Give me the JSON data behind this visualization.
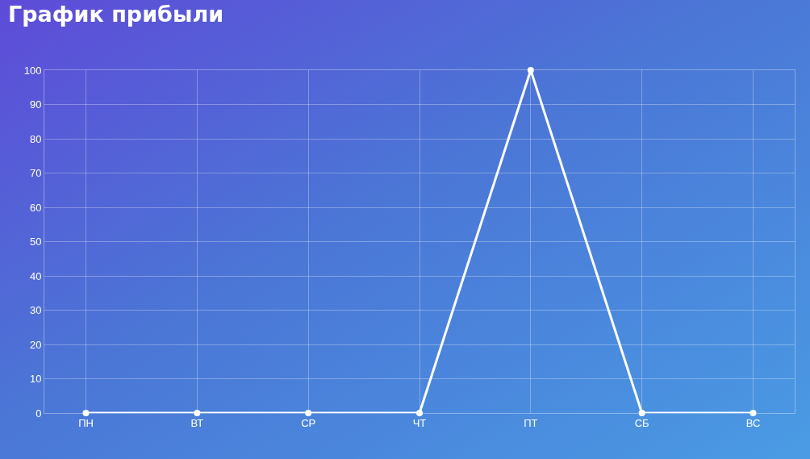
{
  "chart_data": {
    "type": "line",
    "title": "График прибыли",
    "categories": [
      "ПН",
      "ВТ",
      "СР",
      "ЧТ",
      "ПТ",
      "СБ",
      "ВС"
    ],
    "series": [
      {
        "color": "#ffffff",
        "values": [
          0,
          0,
          0,
          0,
          100,
          0,
          0
        ]
      }
    ],
    "ylim": [
      0,
      100
    ],
    "yticks": [
      0,
      10,
      20,
      30,
      40,
      50,
      60,
      70,
      80,
      90,
      100
    ],
    "grid": true,
    "marker": "circle",
    "line_style": "solid",
    "legend": false
  }
}
